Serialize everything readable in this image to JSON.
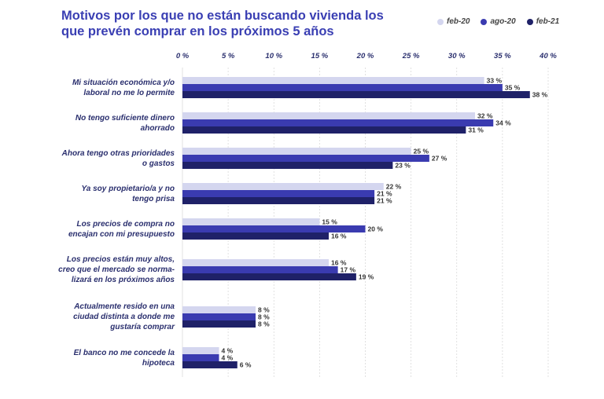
{
  "chart_data": {
    "type": "bar",
    "orientation": "horizontal",
    "title": "Motivos por los que no están buscando vivienda los que prevén comprar en los próximos 5 años",
    "xlabel": "",
    "ylabel": "",
    "xlim": [
      0,
      40
    ],
    "ticks": [
      "0 %",
      "5 %",
      "10 %",
      "15 %",
      "20 %",
      "25 %",
      "30 %",
      "35 %",
      "40 %"
    ],
    "grid": true,
    "legend_position": "top-right",
    "categories": [
      "Mi situación económica y/o laboral no me lo permite",
      "No tengo suficiente dinero ahorrado",
      "Ahora tengo otras prioridades o gastos",
      "Ya soy propietario/a y no tengo prisa",
      "Los precios de compra no encajan con mi presupuesto",
      "Los precios están muy altos, creo que el mercado se normalizará en los próximos años",
      "Actualmente resido en una ciudad distinta a donde me gustaría comprar",
      "El banco no me concede la hipoteca"
    ],
    "category_lines": [
      [
        "Mi situación económica y/o",
        "laboral no me lo permite"
      ],
      [
        "No tengo suficiente dinero",
        "ahorrado"
      ],
      [
        "Ahora tengo otras prioridades",
        "o gastos"
      ],
      [
        "Ya soy propietario/a y no",
        "tengo prisa"
      ],
      [
        "Los precios de compra no",
        "encajan con mi presupuesto"
      ],
      [
        "Los precios están muy altos,",
        "creo que el mercado se norma-",
        "lizará en los próximos años"
      ],
      [
        "Actualmente resido en una",
        "ciudad distinta a donde me",
        "gustaría comprar"
      ],
      [
        "El banco no me concede la",
        "hipoteca"
      ]
    ],
    "series": [
      {
        "name": "feb-20",
        "color": "#d4d6ef",
        "values": [
          33,
          32,
          25,
          22,
          15,
          16,
          8,
          4
        ]
      },
      {
        "name": "ago-20",
        "color": "#3a3bb0",
        "values": [
          35,
          34,
          27,
          21,
          20,
          17,
          8,
          4
        ]
      },
      {
        "name": "feb-21",
        "color": "#1f2168",
        "values": [
          38,
          31,
          23,
          21,
          16,
          19,
          8,
          6
        ]
      }
    ],
    "value_suffix": " %"
  }
}
